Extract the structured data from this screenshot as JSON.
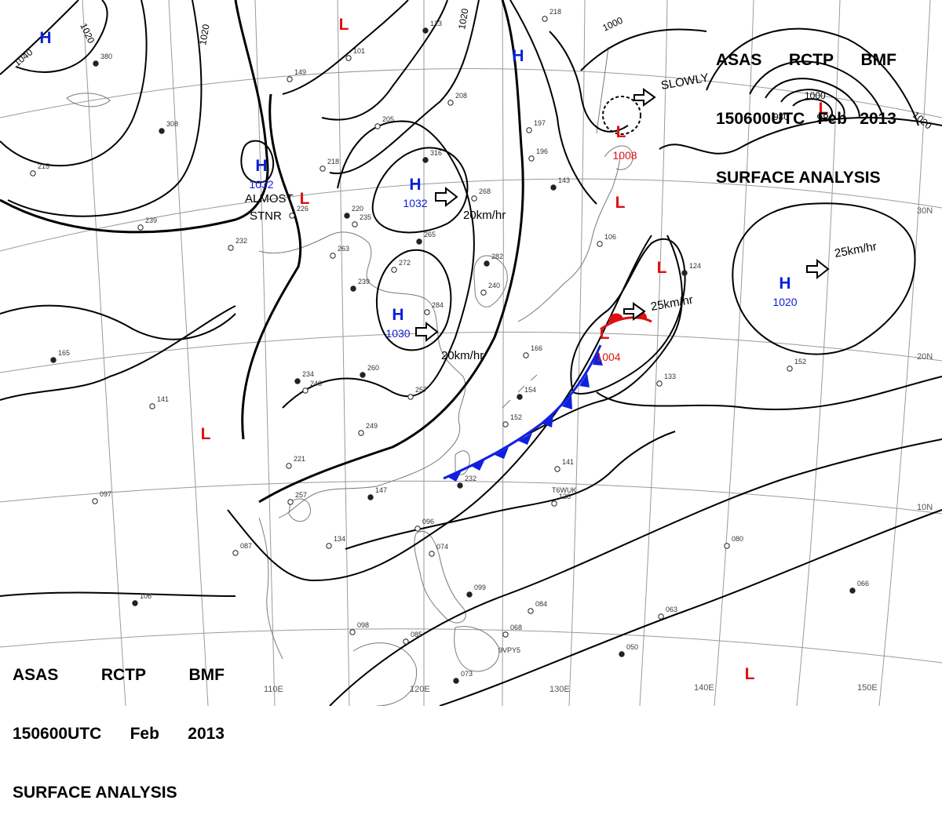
{
  "header": {
    "line1": [
      "ASAS",
      "RCTP",
      "BMF"
    ],
    "line2": [
      "150600UTC",
      "Feb",
      "2013"
    ],
    "line3": "SURFACE ANALYSIS"
  },
  "colors": {
    "contour": "#000000",
    "grid": "#9a9a9a",
    "coast": "#7a7a7a",
    "high": "#0a1fd6",
    "low": "#e01010",
    "cold_front": "#1020e0",
    "warm_front": "#e01010"
  },
  "lat_labels": [
    "30N",
    "20N",
    "10N"
  ],
  "lon_labels": [
    "110E",
    "120E",
    "130E",
    "140E",
    "150E"
  ],
  "isobar_labels": [
    "1040",
    "1020",
    "1020",
    "1020",
    "1000",
    "980",
    "1000",
    "1020"
  ],
  "centers": [
    {
      "type": "H",
      "value": ""
    },
    {
      "type": "H",
      "value": ""
    },
    {
      "type": "H",
      "value": "1032"
    },
    {
      "type": "H",
      "value": "1032"
    },
    {
      "type": "H",
      "value": "1030"
    },
    {
      "type": "H",
      "value": "1020"
    },
    {
      "type": "L",
      "value": ""
    },
    {
      "type": "L",
      "value": ""
    },
    {
      "type": "L",
      "value": "1008"
    },
    {
      "type": "L",
      "value": "980"
    },
    {
      "type": "L",
      "value": ""
    },
    {
      "type": "L",
      "value": ""
    },
    {
      "type": "L",
      "value": "1004"
    },
    {
      "type": "L",
      "value": ""
    },
    {
      "type": "L",
      "value": ""
    }
  ],
  "motion_labels": [
    "20km/hr",
    "20km/hr",
    "SLOWLY",
    "25km/hr",
    "25km/hr"
  ],
  "stationary_note": [
    "ALMOST",
    "STNR"
  ],
  "station_values": [
    "380",
    "149",
    "101",
    "123",
    "208",
    "205",
    "316",
    "268",
    "235",
    "265",
    "263",
    "272",
    "239",
    "284",
    "257",
    "260",
    "246",
    "249",
    "234",
    "221",
    "257",
    "147",
    "134",
    "087",
    "106",
    "098",
    "085",
    "073",
    "096",
    "074",
    "099",
    "084",
    "068",
    "050",
    "063",
    "080",
    "066",
    "152",
    "133",
    "124",
    "141",
    "138",
    "154",
    "197",
    "196",
    "143",
    "106",
    "240",
    "282",
    "166",
    "152",
    "232",
    "239",
    "215",
    "165",
    "141",
    "097",
    "308",
    "218",
    "226",
    "220",
    "232",
    "218"
  ],
  "station_tags": [
    "T6WUK",
    "9VPY5"
  ]
}
